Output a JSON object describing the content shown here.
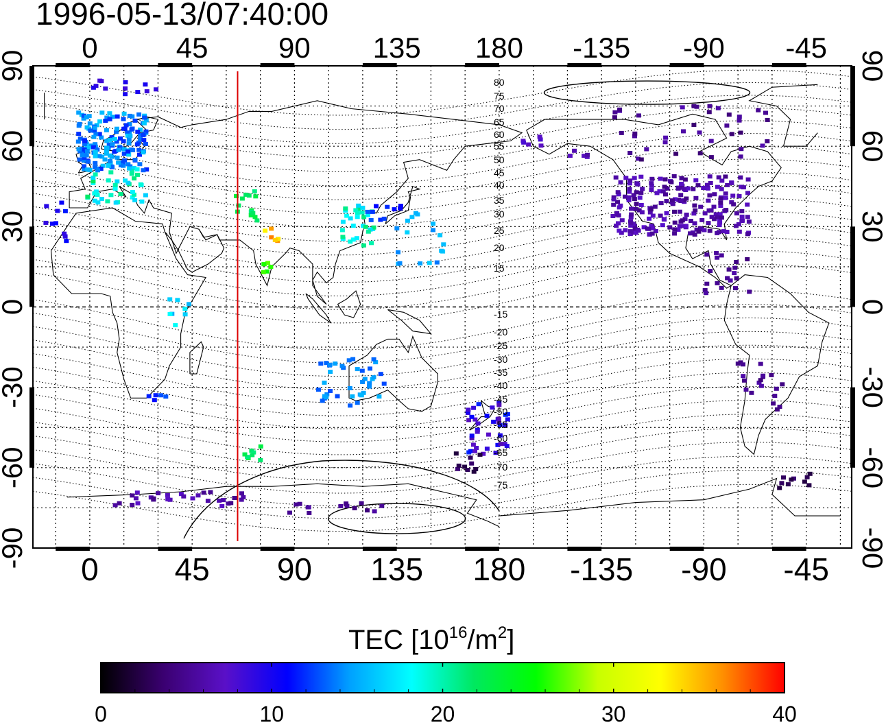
{
  "timestamp": "1996-05-13/07:40:00",
  "top_lon_ticks": [
    "0",
    "45",
    "90",
    "135",
    "180",
    "-135",
    "-90",
    "-45"
  ],
  "bottom_lon_ticks": [
    "0",
    "45",
    "90",
    "135",
    "180",
    "-135",
    "-90",
    "-45"
  ],
  "left_lat_ticks": [
    "90",
    "60",
    "30",
    "0",
    "-30",
    "-60",
    "-90"
  ],
  "right_lat_ticks": [
    "90",
    "60",
    "30",
    "0",
    "-30",
    "-60",
    "-90"
  ],
  "contour_labels": [
    "80",
    "75",
    "70",
    "65",
    "60",
    "55",
    "50",
    "45",
    "40",
    "35",
    "30",
    "25",
    "20",
    "15",
    "-15",
    "-20",
    "-25",
    "-30",
    "-35",
    "-40",
    "-45",
    "-50",
    "-55",
    "-60",
    "-65",
    "-70",
    "-75"
  ],
  "colorbar": {
    "title_main": "TEC  [10",
    "title_exp1": "16",
    "title_mid": "/m",
    "title_exp2": "2",
    "title_end": "]",
    "min": 0,
    "max": 40,
    "tick_labels": [
      "0",
      "10",
      "20",
      "30",
      "40"
    ],
    "stops": [
      "#000000",
      "#3a0070",
      "#5a10c8",
      "#0000ff",
      "#00a0ff",
      "#00ffff",
      "#00e860",
      "#00ff00",
      "#c8ff00",
      "#ffff00",
      "#ff9000",
      "#ff0000"
    ]
  },
  "map": {
    "projection": "equirectangular, centered on 155E",
    "lon_range": [
      -25,
      335
    ],
    "lat_range": [
      -90,
      90
    ],
    "terminator_line_color": "#dd0000",
    "terminator_longitude": 65
  }
}
